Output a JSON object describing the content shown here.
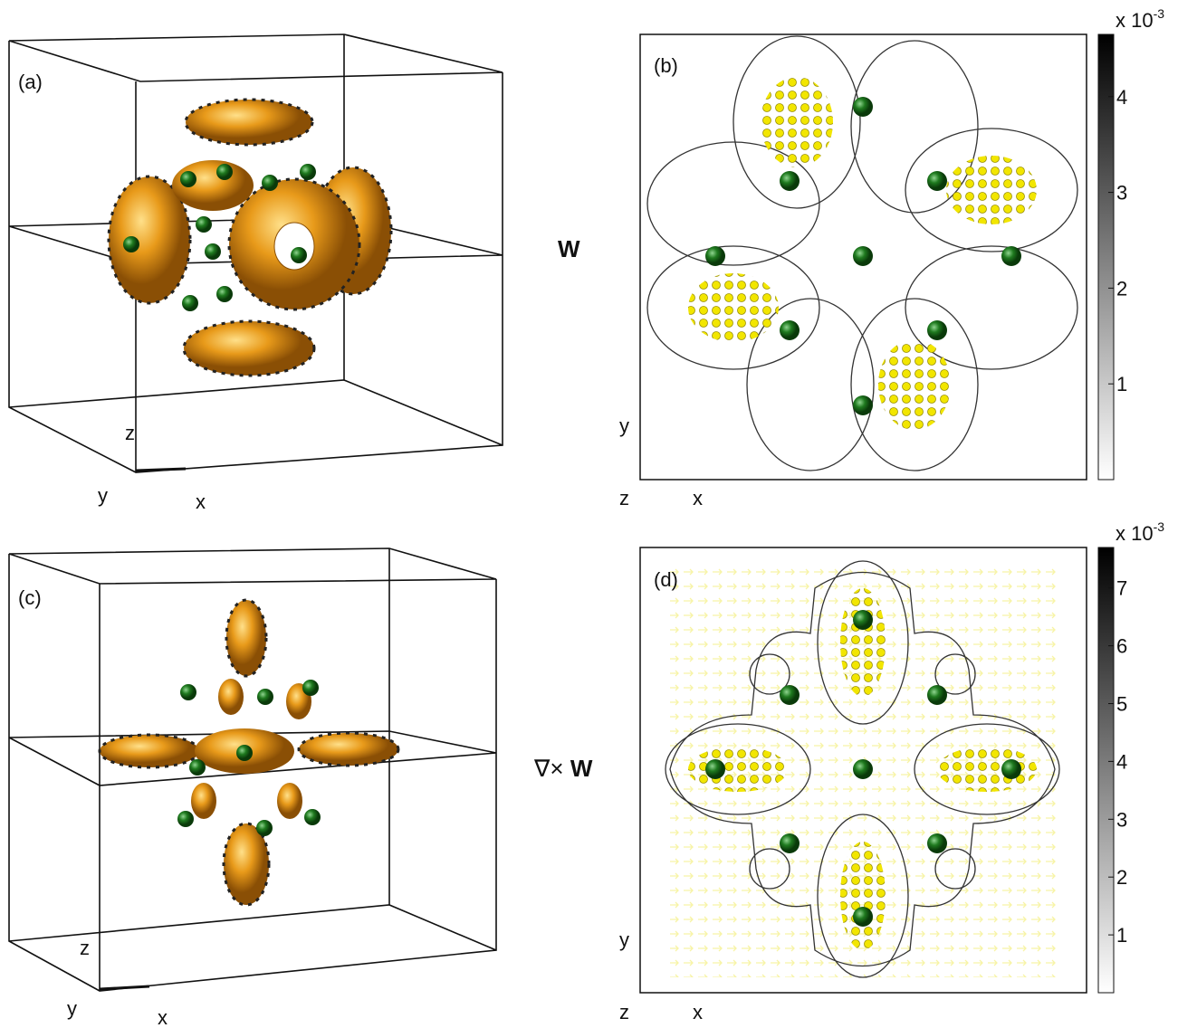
{
  "panels": [
    {
      "label": "(a)",
      "axes": [
        "z",
        "y",
        "x"
      ]
    },
    {
      "label": "(b)",
      "axes": [
        "y",
        "z",
        "x"
      ]
    },
    {
      "label": "(c)",
      "axes": [
        "z",
        "y",
        "x"
      ]
    },
    {
      "label": "(d)",
      "axes": [
        "y",
        "z",
        "x"
      ]
    }
  ],
  "row_labels": [
    {
      "symbol": "W"
    },
    {
      "prefix": "∇×",
      "symbol": "W"
    }
  ],
  "colorbars": [
    {
      "scale_label": "x 10",
      "exponent": "-3",
      "range": [
        0,
        4.65
      ],
      "ticks": [
        1,
        2,
        3,
        4
      ]
    },
    {
      "scale_label": "x 10",
      "exponent": "-3",
      "range": [
        0,
        7.7
      ],
      "ticks": [
        1,
        2,
        3,
        4,
        5,
        6,
        7
      ]
    }
  ]
}
